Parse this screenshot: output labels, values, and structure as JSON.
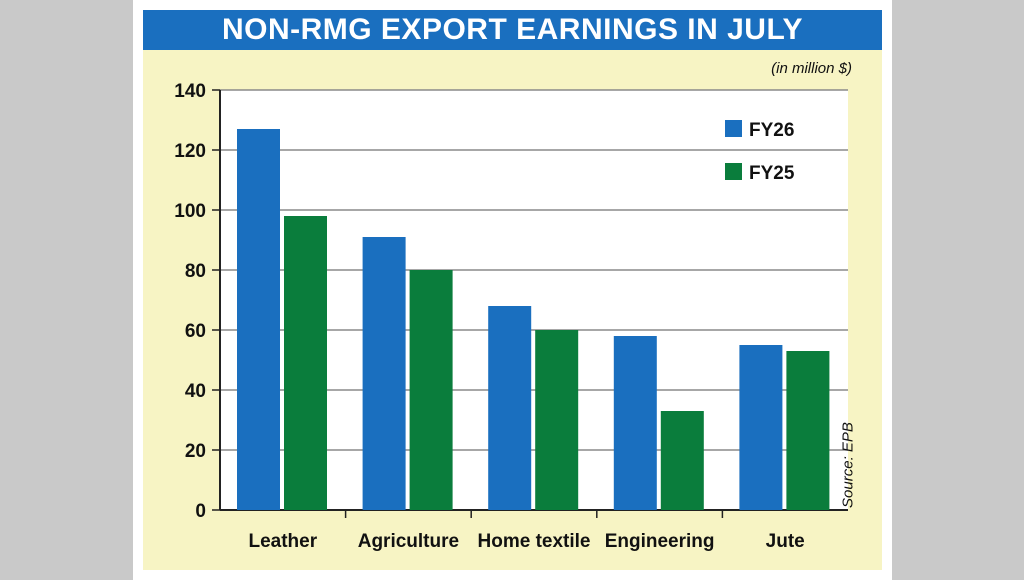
{
  "header": {
    "title": "NON-RMG EXPORT EARNINGS IN JULY",
    "units": "(in million $)"
  },
  "source_note": "Source: EPB",
  "chart_data": {
    "type": "bar",
    "title": "NON-RMG EXPORT EARNINGS IN JULY",
    "ylabel": "",
    "xlabel": "",
    "categories": [
      "Leather",
      "Agriculture",
      "Home textile",
      "Engineering",
      "Jute"
    ],
    "series": [
      {
        "name": "FY26",
        "values": [
          127,
          91,
          68,
          58,
          55
        ],
        "color": "#1a6fbf"
      },
      {
        "name": "FY25",
        "values": [
          98,
          80,
          60,
          33,
          53
        ],
        "color": "#0a7d3c"
      }
    ],
    "ylim": [
      0,
      140
    ],
    "yticks": [
      "0",
      "20",
      "40",
      "60",
      "80",
      "100",
      "120",
      "140"
    ],
    "grid": true,
    "legend_position": "top-right"
  }
}
